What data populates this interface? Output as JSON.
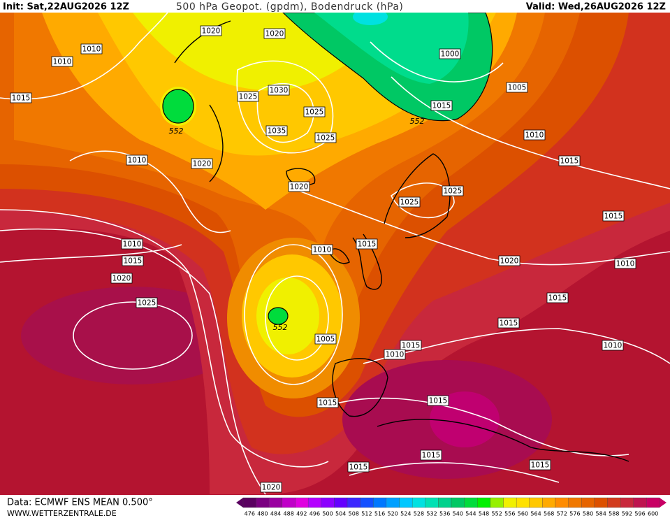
{
  "header": {
    "init": "Init: Sat,22AUG2026 12Z",
    "title": "500 hPa Geopot. (gpdm), Bodendruck (hPa)",
    "valid": "Valid: Wed,26AUG2026 12Z"
  },
  "pressure_labels": [
    "1020",
    "1020",
    "1010",
    "1010",
    "1015",
    "1025",
    "1030",
    "1025",
    "1035",
    "1025",
    "1010",
    "1020",
    "1020",
    "1000",
    "1005",
    "1015",
    "1010",
    "1015",
    "1025",
    "1025",
    "1015",
    "1010",
    "1015",
    "1020",
    "1010",
    "1015",
    "1020",
    "1010",
    "1025",
    "1015",
    "1015",
    "1005",
    "1015",
    "1010",
    "1010",
    "1015",
    "1015",
    "1015",
    "1015",
    "1015",
    "1020"
  ],
  "height_labels": [
    "552",
    "552",
    "552"
  ],
  "legend": {
    "labels": [
      476,
      480,
      484,
      488,
      492,
      496,
      500,
      504,
      508,
      512,
      516,
      520,
      524,
      528,
      532,
      536,
      540,
      544,
      548,
      552,
      556,
      560,
      564,
      568,
      572,
      576,
      580,
      584,
      588,
      592,
      596,
      600
    ],
    "colors": [
      "#5a0060",
      "#7a0080",
      "#9a00a0",
      "#c000c8",
      "#e000e0",
      "#b400ff",
      "#8c00ff",
      "#6400ff",
      "#3c28ff",
      "#1450ff",
      "#0078ff",
      "#00a0ff",
      "#00c8ff",
      "#00e1e1",
      "#00e1b4",
      "#00d28c",
      "#00c864",
      "#00dc3c",
      "#00f000",
      "#96f000",
      "#f0f000",
      "#ffe100",
      "#ffc800",
      "#ffaa00",
      "#ff8c00",
      "#f07800",
      "#e66400",
      "#dc5000",
      "#d23c1e",
      "#c8283c",
      "#be1450",
      "#c80064"
    ]
  },
  "footer": {
    "source": "Data: ECMWF ENS MEAN 0.500°",
    "website": "WWW.WETTERZENTRALE.DE"
  }
}
